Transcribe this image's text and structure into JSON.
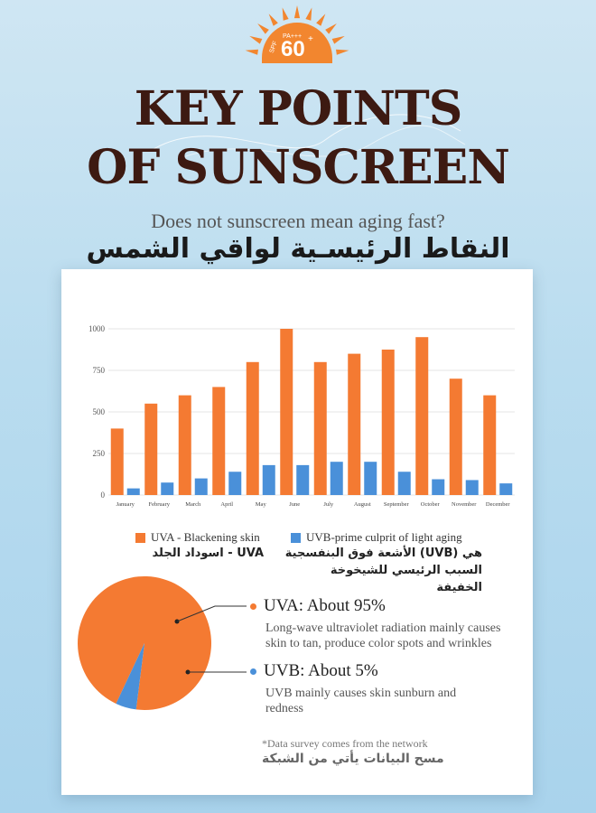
{
  "badge": {
    "line1": "PA+++",
    "value": "60",
    "prefix": "SPF",
    "suffix": "+"
  },
  "header": {
    "title_line1": "KEY POINTS",
    "title_line2": "OF SUNSCREEN",
    "subtitle": "Does not sunscreen mean aging fast?",
    "subtitle_ar": "النقاط الرئيسـية لواقي الشمس"
  },
  "colors": {
    "uva": "#f47a32",
    "uvb": "#4a90d9",
    "title": "#3d1a12",
    "badge": "#f2862f"
  },
  "chart_data": [
    {
      "type": "bar",
      "categories": [
        "January",
        "February",
        "March",
        "April",
        "May",
        "June",
        "July",
        "August",
        "September",
        "October",
        "November",
        "December"
      ],
      "series": [
        {
          "name": "UVA - Blackening skin",
          "values": [
            400,
            550,
            600,
            650,
            800,
            1000,
            800,
            850,
            875,
            950,
            700,
            600
          ]
        },
        {
          "name": "UVB-prime culprit of light aging",
          "values": [
            40,
            75,
            100,
            140,
            180,
            180,
            200,
            200,
            140,
            95,
            90,
            70
          ]
        }
      ],
      "yticks": [
        "0",
        "250",
        "500",
        "750",
        "1000"
      ],
      "ylim": [
        0,
        1000
      ],
      "legend": "bottom"
    },
    {
      "type": "pie",
      "labels": [
        "UVA",
        "UVB"
      ],
      "values": [
        95,
        5
      ]
    }
  ],
  "legend": {
    "uva_label": "UVA - Blackening skin",
    "uva_label_ar": "UVA - اسوداد الجلد",
    "uvb_label": "UVB-prime culprit of light aging",
    "uvb_label_ar_1": "هي (UVB) الأشعة فوق البنفسجية",
    "uvb_label_ar_2": "السبب الرئيسي للشيخوخة الخفيفة"
  },
  "pie": {
    "uva_title": "UVA:  About 95%",
    "uva_desc_1": "Long-wave ultraviolet radiation mainly causes",
    "uva_desc_2": "skin to tan, produce color spots and wrinkles",
    "uvb_title": "UVB: About 5%",
    "uvb_desc_1": "UVB mainly causes skin sunburn and",
    "uvb_desc_2": "redness"
  },
  "note": {
    "text": "*Data survey comes from the network",
    "text_ar": "مسح البيانات يأتي من الشبكة"
  }
}
